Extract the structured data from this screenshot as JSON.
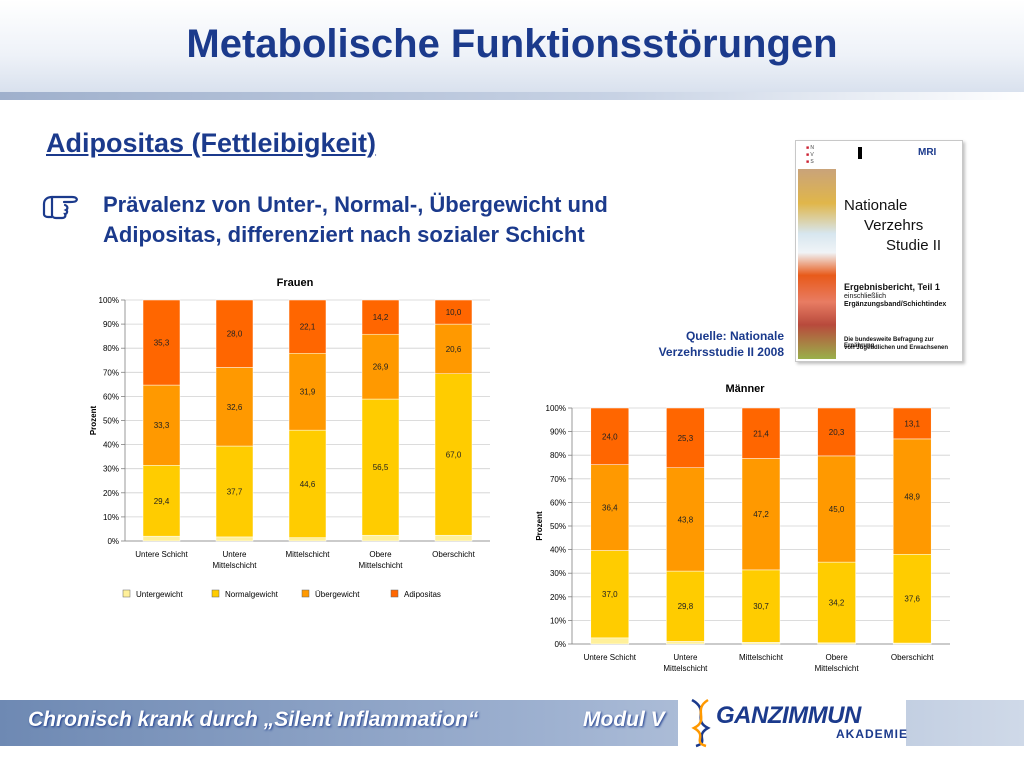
{
  "slide": {
    "title": "Metabolische Funktionsstörungen",
    "subtitle": "Adipositas (Fettleibigkeit)",
    "bullet_line1": "Prävalenz von Unter-, Normal-, Übergewicht und",
    "bullet_line2": "Adipositas, differenziert nach sozialer Schicht",
    "source_line1": "Quelle: Nationale",
    "source_line2": "Verzehrsstudie II 2008",
    "footer_left": "Chronisch krank durch „Silent Inflammation“",
    "footer_module": "Modul V",
    "logo_main": "GANZIMMUN",
    "logo_sub": "AKADEMIE"
  },
  "cover": {
    "mri": "MRI",
    "line1": "Nationale",
    "line2": "Verzehrs",
    "line3": "Studie II",
    "report": "Ergebnisbericht, Teil 1",
    "incl": "einschließlich",
    "supplement": "Ergänzungsband/Schichtindex",
    "survey_line1": "Die bundesweite Befragung zur Ernährung",
    "survey_line2": "von Jugendlichen und Erwachsenen"
  },
  "colors": {
    "accent": "#1b3a8c",
    "untergewicht": "#FFF09A",
    "normalgewicht": "#FFCC00",
    "uebergewicht": "#FF9900",
    "adipositas": "#FF6600"
  },
  "chart_data": [
    {
      "type": "bar",
      "stacked": true,
      "title": "Frauen",
      "ylabel": "Prozent",
      "xlabel": "",
      "ylim": [
        0,
        100
      ],
      "yticks": [
        "0%",
        "10%",
        "20%",
        "30%",
        "40%",
        "50%",
        "60%",
        "70%",
        "80%",
        "90%",
        "100%"
      ],
      "categories": [
        "Untere Schicht",
        "Untere Mittelschicht",
        "Mittelschicht",
        "Obere Mittelschicht",
        "Oberschicht"
      ],
      "series": [
        {
          "name": "Untergewicht",
          "values": [
            2.0,
            1.7,
            1.4,
            2.4,
            2.4
          ],
          "labels": [
            "",
            "",
            "",
            "",
            ""
          ]
        },
        {
          "name": "Normalgewicht",
          "values": [
            29.4,
            37.7,
            44.6,
            56.5,
            67.0
          ],
          "labels": [
            "29,4",
            "37,7",
            "44,6",
            "56,5",
            "67,0"
          ]
        },
        {
          "name": "Übergewicht",
          "values": [
            33.3,
            32.6,
            31.9,
            26.9,
            20.6
          ],
          "labels": [
            "33,3",
            "32,6",
            "31,9",
            "26,9",
            "20,6"
          ]
        },
        {
          "name": "Adipositas",
          "values": [
            35.3,
            28.0,
            22.1,
            14.2,
            10.0
          ],
          "labels": [
            "35,3",
            "28,0",
            "22,1",
            "14,2",
            "10,0"
          ]
        }
      ],
      "legend": "bottom"
    },
    {
      "type": "bar",
      "stacked": true,
      "title": "Männer",
      "ylabel": "Prozent",
      "xlabel": "",
      "ylim": [
        0,
        100
      ],
      "yticks": [
        "0%",
        "10%",
        "20%",
        "30%",
        "40%",
        "50%",
        "60%",
        "70%",
        "80%",
        "90%",
        "100%"
      ],
      "categories": [
        "Untere Schicht",
        "Untere Mittelschicht",
        "Mittelschicht",
        "Obere Mittelschicht",
        "Oberschicht"
      ],
      "series": [
        {
          "name": "Untergewicht",
          "values": [
            2.6,
            1.1,
            0.7,
            0.5,
            0.4
          ],
          "labels": [
            "",
            "",
            "",
            "",
            ""
          ]
        },
        {
          "name": "Normalgewicht",
          "values": [
            37.0,
            29.8,
            30.7,
            34.2,
            37.6
          ],
          "labels": [
            "37,0",
            "29,8",
            "30,7",
            "34,2",
            "37,6"
          ]
        },
        {
          "name": "Übergewicht",
          "values": [
            36.4,
            43.8,
            47.2,
            45.0,
            48.9
          ],
          "labels": [
            "36,4",
            "43,8",
            "47,2",
            "45,0",
            "48,9"
          ]
        },
        {
          "name": "Adipositas",
          "values": [
            24.0,
            25.3,
            21.4,
            20.3,
            13.1
          ],
          "labels": [
            "24,0",
            "25,3",
            "21,4",
            "20,3",
            "13,1"
          ]
        }
      ],
      "legend": "none"
    }
  ]
}
